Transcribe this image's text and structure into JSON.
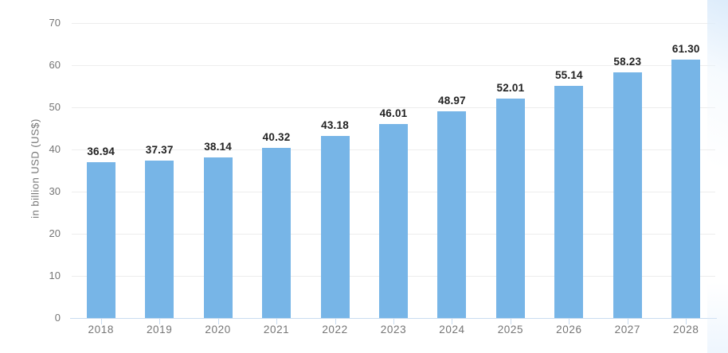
{
  "chart_data": {
    "type": "bar",
    "title": "",
    "xlabel": "",
    "ylabel": "in billion USD (US$)",
    "categories": [
      "2018",
      "2019",
      "2020",
      "2021",
      "2022",
      "2023",
      "2024",
      "2025",
      "2026",
      "2027",
      "2028"
    ],
    "values": [
      36.94,
      37.37,
      38.14,
      40.32,
      43.18,
      46.01,
      48.97,
      52.01,
      55.14,
      58.23,
      61.3
    ],
    "value_labels": [
      "36.94",
      "37.37",
      "38.14",
      "40.32",
      "43.18",
      "46.01",
      "48.97",
      "52.01",
      "55.14",
      "58.23",
      "61.30"
    ],
    "ylim": [
      0,
      70
    ],
    "ytick_step": 10,
    "ytick_labels": [
      "0",
      "10",
      "20",
      "30",
      "40",
      "50",
      "60",
      "70"
    ],
    "grid": true,
    "legend_position": "none",
    "colors": {
      "bar": "#77B5E7",
      "value_label": "#222222",
      "axis_text": "#757575",
      "gridline": "#EDEDED",
      "axis_line": "#C9DCF0",
      "background": "#FFFFFF"
    }
  }
}
